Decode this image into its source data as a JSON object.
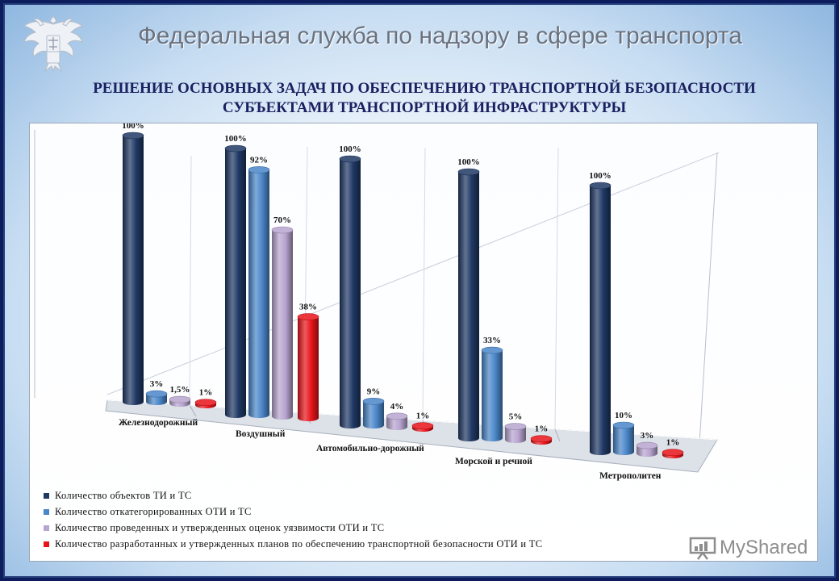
{
  "header": {
    "title": "Федеральная служба по надзору в сфере транспорта"
  },
  "subtitle": {
    "line1": "РЕШЕНИЕ ОСНОВНЫХ ЗАДАЧ ПО ОБЕСПЕЧЕНИЮ ТРАНСПОРТНОЙ БЕЗОПАСНОСТИ",
    "line2": "СУБЪЕКТАМИ ТРАНСПОРТНОЙ ИНФРАСТРУКТУРЫ"
  },
  "watermark": {
    "text": "MyShared",
    "icon": "presentation-board-icon"
  },
  "emblem": {
    "icon": "double-headed-eagle-emblem-icon"
  },
  "chart_data": {
    "type": "bar",
    "style": "3d-cylinder",
    "categories": [
      "Железнодорожный",
      "Воздушный",
      "Автомобильно-дорожный",
      "Морской и речной",
      "Метрополитен"
    ],
    "series": [
      {
        "name": "Количество объектов ТИ и ТС",
        "values": [
          100,
          100,
          100,
          100,
          100
        ],
        "labels": [
          "100%",
          "100%",
          "100%",
          "100%",
          "100%"
        ],
        "color": "#1f3864"
      },
      {
        "name": "Количество откатегорированных ОТИ и ТС",
        "values": [
          3,
          92,
          9,
          33,
          10
        ],
        "labels": [
          "3%",
          "92%",
          "9%",
          "33%",
          "10%"
        ],
        "color": "#4a86c8"
      },
      {
        "name": "Количество проведенных и утвержденных оценок уязвимости ОТИ и ТС",
        "values": [
          1.5,
          70,
          4,
          5,
          3
        ],
        "labels": [
          "1,5%",
          "70%",
          "4%",
          "5%",
          "3%"
        ],
        "color": "#b7a4cf"
      },
      {
        "name": "Количество разработанных и утвержденных планов по обеспечению транспортной безопасности ОТИ и ТС",
        "values": [
          1,
          38,
          1,
          1,
          1
        ],
        "labels": [
          "1%",
          "38%",
          "1%",
          "1%",
          "1%"
        ],
        "color": "#e8141a"
      }
    ],
    "ylim": [
      0,
      100
    ],
    "grid": false,
    "legend_position": "bottom-left"
  }
}
